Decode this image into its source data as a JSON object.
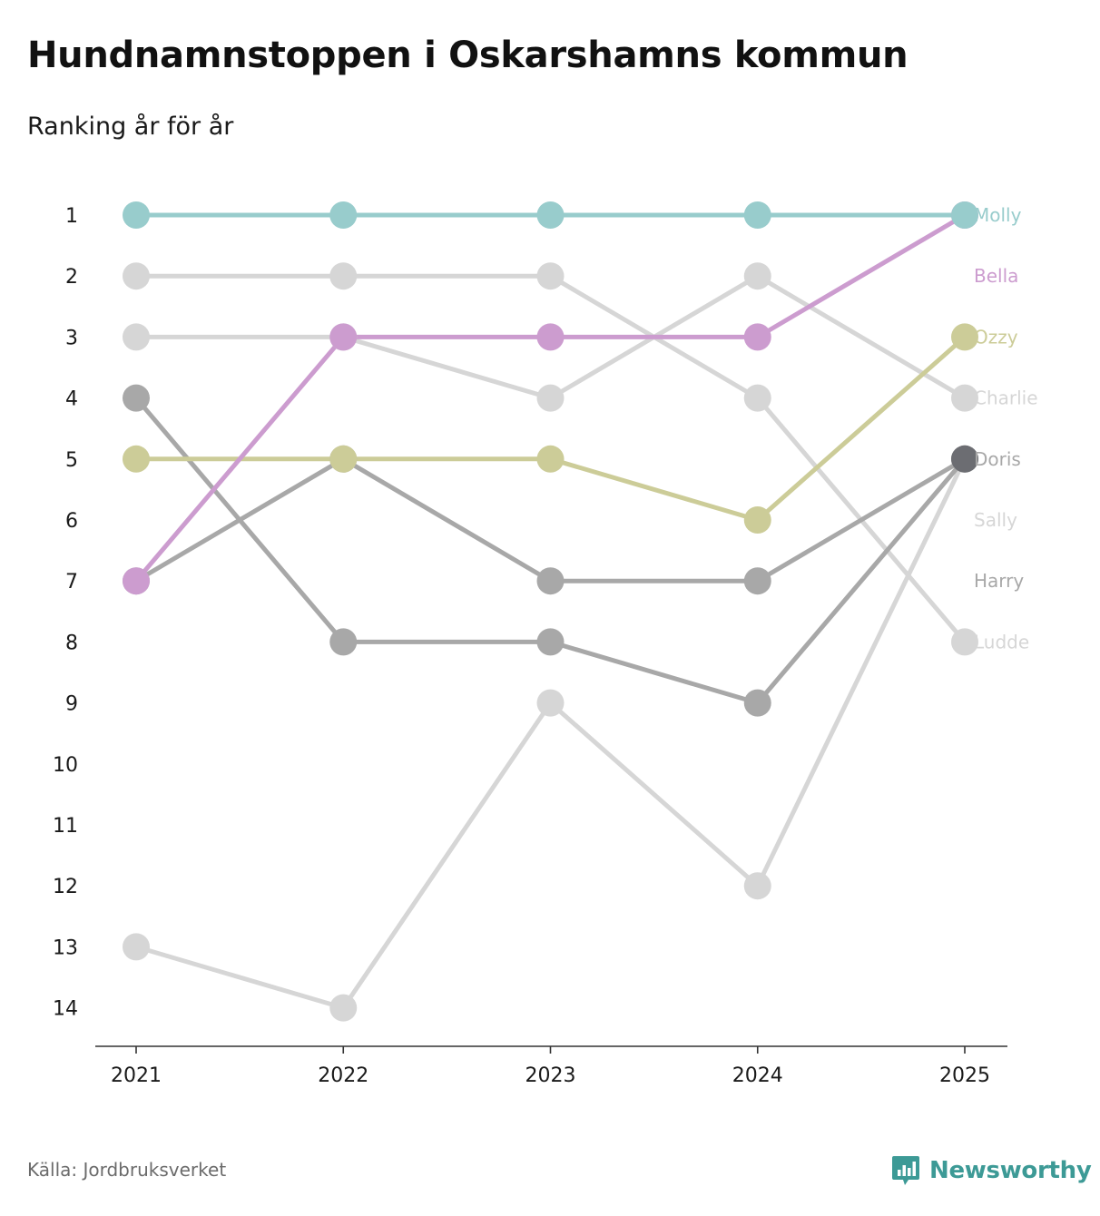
{
  "header": {
    "title": "Hundnamnstoppen i Oskarshamns kommun",
    "subtitle": "Ranking år för år"
  },
  "footer": {
    "source": "Källa: Jordbruksverket",
    "brand": "Newsworthy",
    "brand_icon": "newsworthy-logo-icon",
    "brand_color": "#3d9a96"
  },
  "chart_data": {
    "type": "line",
    "title": "Hundnamnstoppen i Oskarshamns kommun",
    "subtitle": "Ranking år för år",
    "xlabel": "",
    "ylabel": "",
    "x": [
      "2021",
      "2022",
      "2023",
      "2024",
      "2025"
    ],
    "y_ticks": [
      "1",
      "2",
      "3",
      "4",
      "5",
      "6",
      "7",
      "8",
      "9",
      "10",
      "11",
      "12",
      "13",
      "14"
    ],
    "ylim": [
      1,
      14
    ],
    "y_inverted": true,
    "grid": false,
    "legend": "right-end labels",
    "series": [
      {
        "name": "Ludde",
        "color": "#d6d6d6",
        "values": [
          2,
          2,
          2,
          4,
          8
        ]
      },
      {
        "name": "Sally",
        "color": "#d6d6d6",
        "values": [
          13,
          14,
          9,
          12,
          5
        ]
      },
      {
        "name": "Charlie",
        "color": "#d6d6d6",
        "values": [
          3,
          3,
          4,
          2,
          4
        ]
      },
      {
        "name": "Harry",
        "color": "#a8a8a8",
        "values": [
          4,
          8,
          8,
          9,
          5
        ]
      },
      {
        "name": "Doris",
        "color": "#a8a8a8",
        "values": [
          7,
          5,
          7,
          7,
          5
        ],
        "end_color": "#6c6d72"
      },
      {
        "name": "Ozzy",
        "color": "#cccc98",
        "values": [
          5,
          5,
          5,
          6,
          3
        ]
      },
      {
        "name": "Bella",
        "color": "#cc9ccf",
        "values": [
          7,
          3,
          3,
          3,
          1
        ]
      },
      {
        "name": "Molly",
        "color": "#98cccc",
        "values": [
          1,
          1,
          1,
          1,
          1
        ]
      }
    ],
    "end_labels": [
      {
        "name": "Molly",
        "rank": 1,
        "color": "#98cccc"
      },
      {
        "name": "Bella",
        "rank": 2,
        "color": "#cc9ccf"
      },
      {
        "name": "Ozzy",
        "rank": 3,
        "color": "#cccc98"
      },
      {
        "name": "Charlie",
        "rank": 4,
        "color": "#d6d6d6"
      },
      {
        "name": "Doris",
        "rank": 5,
        "color": "#a8a8a8"
      },
      {
        "name": "Sally",
        "rank": 6,
        "color": "#d6d6d6"
      },
      {
        "name": "Harry",
        "rank": 7,
        "color": "#a8a8a8"
      },
      {
        "name": "Ludde",
        "rank": 8,
        "color": "#d6d6d6"
      }
    ]
  }
}
